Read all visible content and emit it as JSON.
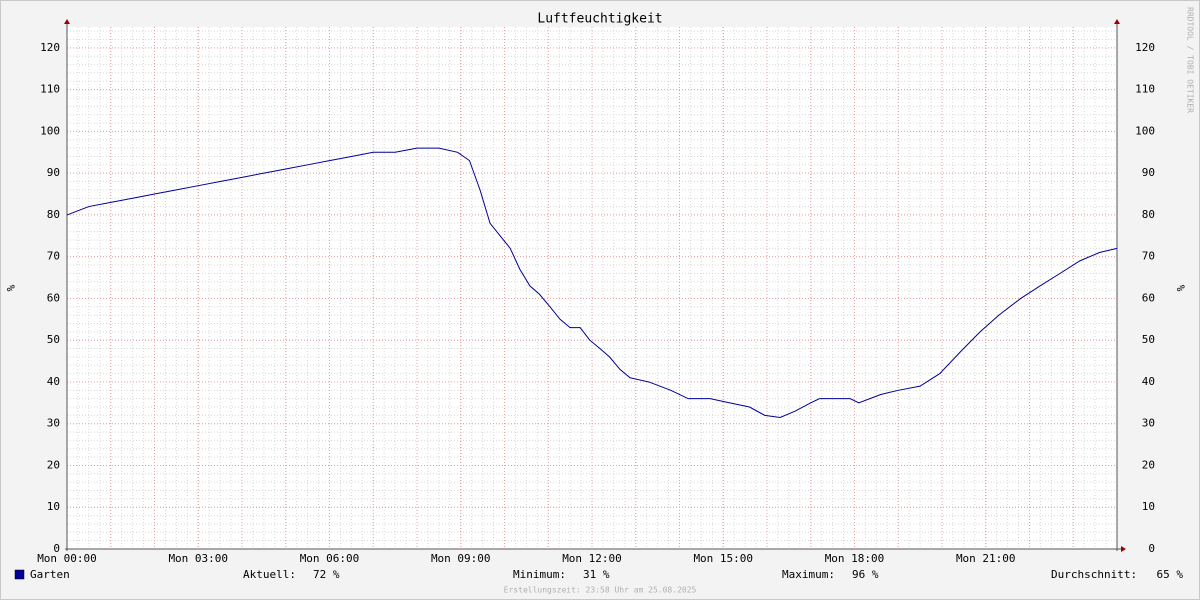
{
  "chart_data": {
    "type": "line",
    "title": "Luftfeuchtigkeit",
    "ylabel": "%",
    "watermark": "RRDTOOL / TOBI OETIKER",
    "footer": "Erstellungszeit: 23:58 Uhr am 25.08.2025",
    "xlim": [
      0,
      24
    ],
    "xticks": [
      {
        "value": 0,
        "label": "Mon 00:00"
      },
      {
        "value": 3,
        "label": "Mon 03:00"
      },
      {
        "value": 6,
        "label": "Mon 06:00"
      },
      {
        "value": 9,
        "label": "Mon 09:00"
      },
      {
        "value": 12,
        "label": "Mon 12:00"
      },
      {
        "value": 15,
        "label": "Mon 15:00"
      },
      {
        "value": 18,
        "label": "Mon 18:00"
      },
      {
        "value": 21,
        "label": "Mon 21:00"
      }
    ],
    "ylim": [
      0,
      125
    ],
    "yticks": [
      0,
      10,
      20,
      30,
      40,
      50,
      60,
      70,
      80,
      90,
      100,
      110,
      120
    ],
    "grid": true,
    "x": [
      0,
      0.5,
      1,
      1.5,
      2,
      2.5,
      3,
      3.5,
      4,
      4.5,
      5,
      5.5,
      6,
      6.5,
      7,
      7.5,
      8,
      8.5,
      8.93,
      9.2,
      9.44,
      9.67,
      9.9,
      10.13,
      10.35,
      10.58,
      10.8,
      11.04,
      11.27,
      11.5,
      11.73,
      11.95,
      12.18,
      12.4,
      12.64,
      12.87,
      13.3,
      13.8,
      14.2,
      14.7,
      15.15,
      15.6,
      15.95,
      16.3,
      16.64,
      17,
      17.2,
      17.9,
      18.1,
      18.6,
      19,
      19.5,
      19.95,
      20.4,
      20.87,
      21.3,
      21.8,
      22.24,
      22.7,
      23.15,
      23.6,
      24
    ],
    "series": [
      {
        "name": "Garten",
        "color": "#000099",
        "values": [
          80,
          82,
          83,
          84,
          85,
          86,
          87,
          88,
          89,
          90,
          91,
          92,
          93,
          94,
          95,
          95,
          96,
          96,
          95,
          93,
          86,
          78,
          75,
          72,
          67,
          63,
          61,
          58,
          55,
          53,
          53,
          50,
          48,
          46,
          43,
          41,
          40,
          38,
          36,
          36,
          35,
          34,
          32,
          31.5,
          33,
          35,
          36,
          36,
          35,
          37,
          38,
          39,
          42,
          47,
          52,
          56,
          60,
          63,
          66,
          69,
          71,
          72
        ]
      }
    ],
    "stats": [
      {
        "label": "Aktuell:",
        "value": 72,
        "value_label": "72 %"
      },
      {
        "label": "Minimum:",
        "value": 31,
        "value_label": "31 %"
      },
      {
        "label": "Maximum:",
        "value": 96,
        "value_label": "96 %"
      },
      {
        "label": "Durchschnitt:",
        "value": 65,
        "value_label": "65 %"
      }
    ]
  }
}
